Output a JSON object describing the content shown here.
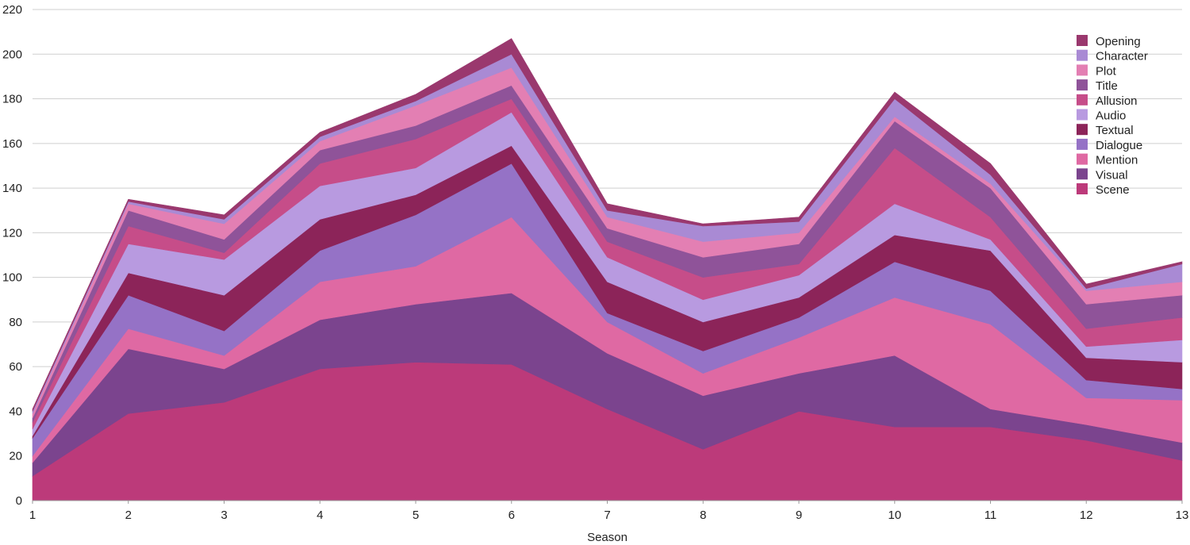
{
  "chart_data": {
    "type": "area",
    "stacked": true,
    "title": "",
    "xlabel": "Season",
    "ylabel": "",
    "x": [
      1,
      2,
      3,
      4,
      5,
      6,
      7,
      8,
      9,
      10,
      11,
      12,
      13
    ],
    "ylim": [
      0,
      220
    ],
    "yticks": [
      0,
      20,
      40,
      60,
      80,
      100,
      120,
      140,
      160,
      180,
      200,
      220
    ],
    "grid": true,
    "legend_position": "top-right",
    "series": [
      {
        "name": "Scene",
        "color": "#bc3a7a",
        "values": [
          11,
          39,
          44,
          59,
          62,
          61,
          41,
          23,
          40,
          33,
          33,
          27,
          18
        ]
      },
      {
        "name": "Visual",
        "color": "#7b448e",
        "values": [
          6,
          29,
          15,
          22,
          26,
          32,
          25,
          24,
          17,
          32,
          8,
          7,
          8
        ]
      },
      {
        "name": "Mention",
        "color": "#df69a3",
        "values": [
          3,
          9,
          6,
          17,
          17,
          34,
          14,
          10,
          16,
          26,
          38,
          12,
          19
        ]
      },
      {
        "name": "Dialogue",
        "color": "#9572c6",
        "values": [
          8,
          15,
          11,
          14,
          23,
          24,
          4,
          10,
          9,
          16,
          15,
          8,
          5
        ]
      },
      {
        "name": "Textual",
        "color": "#8c2459",
        "values": [
          1,
          10,
          16,
          14,
          9,
          8,
          14,
          13,
          9,
          12,
          18,
          10,
          12
        ]
      },
      {
        "name": "Audio",
        "color": "#b89ae0",
        "values": [
          3,
          13,
          16,
          15,
          12,
          15,
          11,
          10,
          10,
          14,
          5,
          5,
          10
        ]
      },
      {
        "name": "Allusion",
        "color": "#c64d89",
        "values": [
          3,
          8,
          3,
          10,
          13,
          6,
          7,
          10,
          5,
          25,
          10,
          8,
          10
        ]
      },
      {
        "name": "Title",
        "color": "#8f5399",
        "values": [
          2,
          7,
          6,
          6,
          6,
          6,
          6,
          9,
          9,
          12,
          13,
          11,
          10
        ]
      },
      {
        "name": "Plot",
        "color": "#e37fb3",
        "values": [
          2,
          3,
          7,
          4,
          9,
          8,
          5,
          7,
          5,
          2,
          2,
          6,
          6
        ]
      },
      {
        "name": "Character",
        "color": "#a98ad4",
        "values": [
          1,
          1,
          2,
          2,
          2,
          6,
          3,
          7,
          5,
          8,
          4,
          1,
          8
        ]
      },
      {
        "name": "Opening",
        "color": "#9a386e",
        "values": [
          1,
          1,
          2,
          2,
          3,
          7,
          3,
          1,
          2,
          3,
          5,
          2,
          1
        ]
      }
    ],
    "legend_order": [
      "Opening",
      "Character",
      "Plot",
      "Title",
      "Allusion",
      "Audio",
      "Textual",
      "Dialogue",
      "Mention",
      "Visual",
      "Scene"
    ]
  }
}
